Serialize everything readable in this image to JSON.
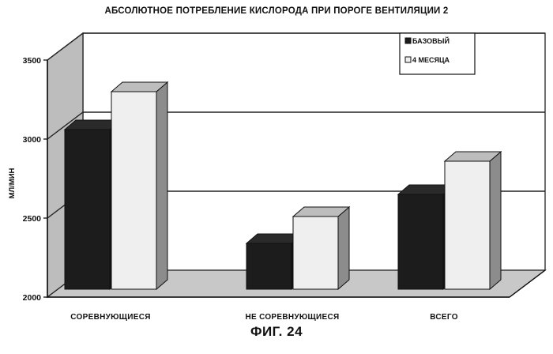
{
  "chart_data": {
    "type": "bar",
    "title": "АБСОЛЮТНОЕ ПОТРЕБЛЕНИЕ КИСЛОРОДА ПРИ ПОРОГЕ ВЕНТИЛЯЦИИ 2",
    "ylabel": "МЛ/МИН",
    "xlabel": "",
    "categories": [
      "СОРЕВНУЮЩИЕСЯ",
      "НЕ СОРЕВНУЮЩИЕСЯ",
      "ВСЕГО"
    ],
    "series": [
      {
        "name": "БАЗОВЫЙ",
        "values": [
          3060,
          2340,
          2650
        ],
        "color": "#1c1c1c"
      },
      {
        "name": "4 МЕСЯЦА",
        "values": [
          3300,
          2510,
          2860
        ],
        "color": "#efefef"
      }
    ],
    "ylim": [
      2000,
      3500
    ],
    "yticks": [
      2000,
      2500,
      3000,
      3500
    ],
    "grid": true,
    "legend": "top-right",
    "style": "3d"
  },
  "caption": "ФИГ. 24"
}
